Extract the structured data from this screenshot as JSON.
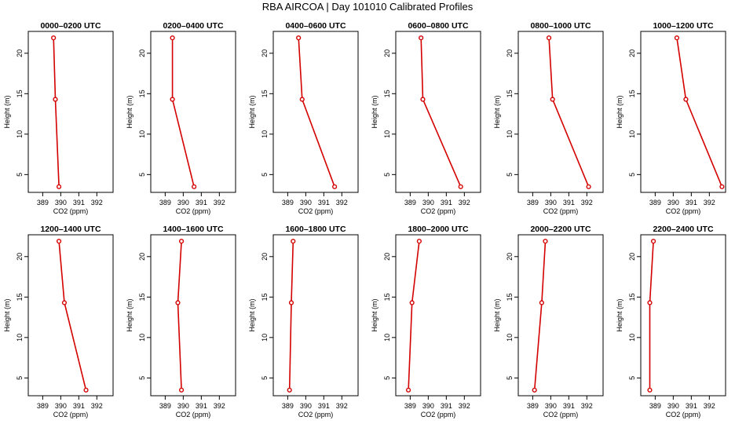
{
  "title": "RBA AIRCOA  |  Day 101010  Calibrated Profiles",
  "colors": {
    "profile": "#d40000",
    "axis": "#000000"
  },
  "chart_data": {
    "type": "line",
    "xlabel": "CO2 (ppm)",
    "ylabel": "Height (m)",
    "xlim": [
      388.2,
      392.9
    ],
    "ylim": [
      2.8,
      22.7
    ],
    "xticks": [
      389,
      390,
      391,
      392
    ],
    "yticks": [
      5,
      10,
      15,
      20
    ],
    "grid": false,
    "panels": [
      {
        "title": "0000–0200 UTC",
        "points": [
          [
            389.6,
            21.9
          ],
          [
            389.7,
            14.3
          ],
          [
            389.9,
            3.5
          ]
        ]
      },
      {
        "title": "0200–0400 UTC",
        "points": [
          [
            389.4,
            21.9
          ],
          [
            389.4,
            14.3
          ],
          [
            390.6,
            3.5
          ]
        ]
      },
      {
        "title": "0400–0600 UTC",
        "points": [
          [
            389.6,
            21.9
          ],
          [
            389.8,
            14.3
          ],
          [
            391.6,
            3.5
          ]
        ]
      },
      {
        "title": "0600–0800 UTC",
        "points": [
          [
            389.6,
            21.9
          ],
          [
            389.7,
            14.3
          ],
          [
            391.8,
            3.5
          ]
        ]
      },
      {
        "title": "0800–1000 UTC",
        "points": [
          [
            389.9,
            21.9
          ],
          [
            390.1,
            14.3
          ],
          [
            392.1,
            3.5
          ]
        ]
      },
      {
        "title": "1000–1200 UTC",
        "points": [
          [
            390.2,
            21.9
          ],
          [
            390.7,
            14.3
          ],
          [
            392.7,
            3.5
          ]
        ]
      },
      {
        "title": "1200–1400 UTC",
        "points": [
          [
            389.9,
            21.9
          ],
          [
            390.2,
            14.3
          ],
          [
            391.4,
            3.5
          ]
        ]
      },
      {
        "title": "1400–1600 UTC",
        "points": [
          [
            389.9,
            21.9
          ],
          [
            389.7,
            14.3
          ],
          [
            389.9,
            3.5
          ]
        ]
      },
      {
        "title": "1600–1800 UTC",
        "points": [
          [
            389.3,
            21.9
          ],
          [
            389.2,
            14.3
          ],
          [
            389.1,
            3.5
          ]
        ]
      },
      {
        "title": "1800–2000 UTC",
        "points": [
          [
            389.5,
            21.9
          ],
          [
            389.1,
            14.3
          ],
          [
            388.9,
            3.5
          ]
        ]
      },
      {
        "title": "2000–2200 UTC",
        "points": [
          [
            389.7,
            21.9
          ],
          [
            389.5,
            14.3
          ],
          [
            389.1,
            3.5
          ]
        ]
      },
      {
        "title": "2200–2400 UTC",
        "points": [
          [
            388.9,
            21.9
          ],
          [
            388.7,
            14.3
          ],
          [
            388.7,
            3.5
          ]
        ]
      }
    ]
  }
}
